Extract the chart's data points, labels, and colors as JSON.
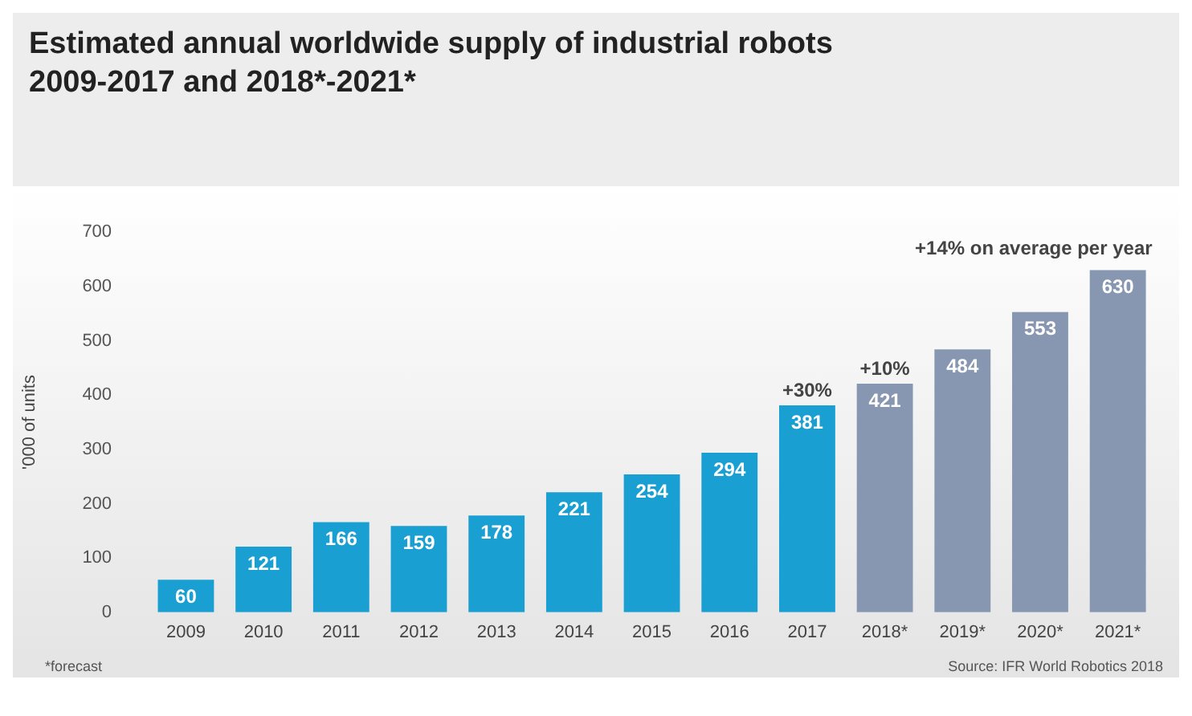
{
  "chart_data": {
    "type": "bar",
    "title": "Estimated annual worldwide supply of industrial robots\n2009-2017 and 2018*-2021*",
    "ylabel": "'000 of units",
    "categories": [
      "2009",
      "2010",
      "2011",
      "2012",
      "2013",
      "2014",
      "2015",
      "2016",
      "2017",
      "2018*",
      "2019*",
      "2020*",
      "2021*"
    ],
    "values": [
      60,
      121,
      166,
      159,
      178,
      221,
      254,
      294,
      381,
      421,
      484,
      553,
      630
    ],
    "colors": [
      "#1a9fd2",
      "#1a9fd2",
      "#1a9fd2",
      "#1a9fd2",
      "#1a9fd2",
      "#1a9fd2",
      "#1a9fd2",
      "#1a9fd2",
      "#1a9fd2",
      "#8797b1",
      "#8797b1",
      "#8797b1",
      "#8797b1"
    ],
    "ylim": [
      0,
      700
    ],
    "yticks": [
      0,
      100,
      200,
      300,
      400,
      500,
      600,
      700
    ],
    "grid": false,
    "legend": false,
    "data_labels": true,
    "annotations": [
      {
        "text": "+30%",
        "x": "2017",
        "y": 381
      },
      {
        "text": "+10%",
        "x": "2018*",
        "y": 421
      },
      {
        "text": "+14% on average per year",
        "x": "2021*",
        "y": 630
      },
      "*forecast",
      "Source: IFR World Robotics 2018"
    ]
  }
}
